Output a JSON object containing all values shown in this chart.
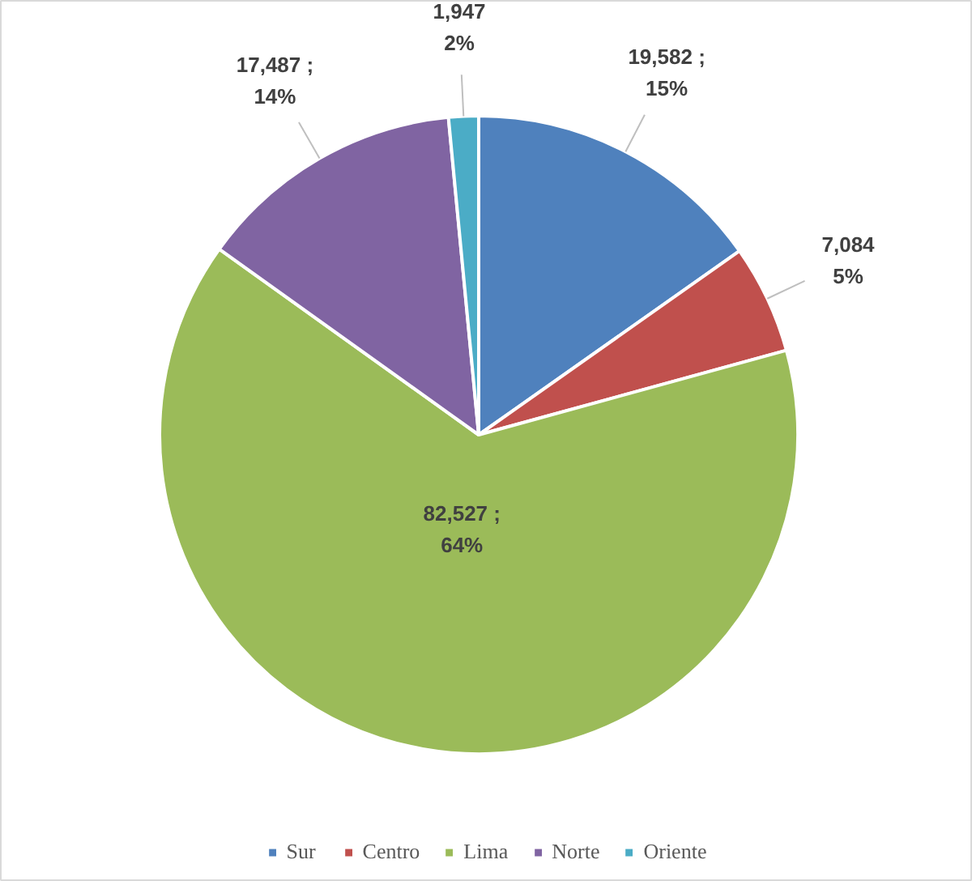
{
  "chart_data": {
    "type": "pie",
    "categories": [
      "Sur",
      "Centro",
      "Lima",
      "Norte",
      "Oriente"
    ],
    "values": [
      19582,
      7084,
      82527,
      17487,
      1947
    ],
    "colors": [
      "#4f81bd",
      "#c0504d",
      "#9bbb59",
      "#8064a2",
      "#4bacc6"
    ],
    "value_labels": [
      "19,582 ;\n15%",
      "7,084\n5%",
      "82,527 ;\n64%",
      "17,487 ;\n14%",
      "1,947\n2%"
    ],
    "legend": "bottom"
  }
}
